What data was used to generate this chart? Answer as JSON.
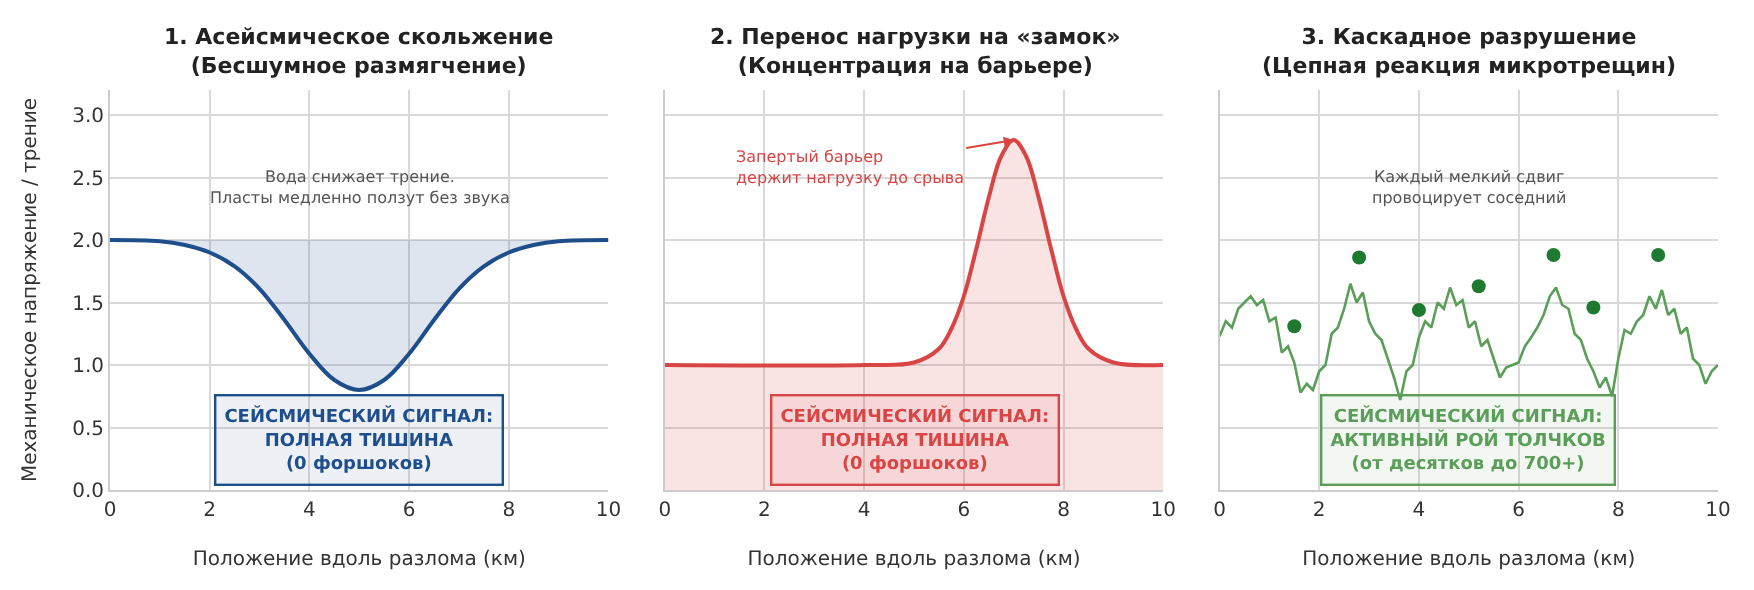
{
  "chart_data": [
    {
      "type": "line",
      "title": "1. Асейсмическое скольжение\n(Бесшумное размягчение)",
      "xlabel": "Положение вдоль разлома (км)",
      "ylabel": "Механическое напряжение / трение",
      "x": [
        0,
        1,
        1.5,
        2,
        2.5,
        3,
        3.5,
        4,
        4.5,
        5,
        5.5,
        6,
        6.5,
        7,
        7.5,
        8,
        8.5,
        9,
        10
      ],
      "series": [
        {
          "color": "#1f4e8c",
          "values": [
            2.0,
            1.99,
            1.96,
            1.9,
            1.79,
            1.61,
            1.36,
            1.09,
            0.88,
            0.8,
            0.88,
            1.09,
            1.36,
            1.61,
            1.79,
            1.9,
            1.96,
            1.99,
            2.0
          ],
          "lower": [
            2.0,
            1.99,
            1.96,
            1.9,
            1.79,
            1.61,
            1.36,
            1.09,
            0.88,
            0.8,
            0.88,
            1.09,
            1.36,
            1.61,
            1.79,
            1.9,
            1.96,
            1.99,
            2.0
          ],
          "upper": [
            2.0,
            2.0,
            2.0,
            2.0,
            2.0,
            2.0,
            2.0,
            2.0,
            2.0,
            2.0,
            2.0,
            2.0,
            2.0,
            2.0,
            2.0,
            2.0,
            2.0,
            2.0,
            2.0
          ]
        }
      ],
      "annotations": [
        "Вода снижает трение.\nПласты медленно ползут без звука",
        "СЕЙСМИЧЕСКИЙ СИГНАЛ:\nПОЛНАЯ ТИШИНА\n(0 форшоков)"
      ],
      "xlim": [
        0,
        10
      ],
      "xticks": [
        0,
        2,
        4,
        6,
        8,
        10
      ],
      "ylim": [
        0,
        3.2
      ],
      "yticks": [
        {
          "value": 0,
          "label": "0.0"
        },
        0.5,
        {
          "value": 1,
          "label": "1.0"
        },
        1.5,
        {
          "value": 2,
          "label": "2.0"
        },
        2.5,
        {
          "value": 3,
          "label": "3.0"
        }
      ],
      "grid": true,
      "marker": "none",
      "line_style": "solid"
    },
    {
      "type": "area",
      "title": "2. Перенос нагрузки на «замок»\n(Концентрация на барьере)",
      "xlabel": "Положение вдоль разлома (км)",
      "x": [
        0,
        4,
        5,
        5.5,
        5.75,
        6,
        6.25,
        6.5,
        6.75,
        7,
        7.25,
        7.5,
        7.75,
        8,
        8.25,
        8.5,
        9,
        10
      ],
      "series": [
        {
          "color": "#d94545",
          "values": [
            1.0,
            1.0,
            1.02,
            1.13,
            1.29,
            1.55,
            1.93,
            2.34,
            2.67,
            2.8,
            2.67,
            2.34,
            1.93,
            1.55,
            1.29,
            1.13,
            1.02,
            1.0
          ]
        }
      ],
      "annotations": [
        {
          "text": "Запертый барьер\nдержит нагрузку до срыва",
          "x": 7,
          "y": 2.8
        },
        "СЕЙСМИЧЕСКИЙ СИГНАЛ:\nПОЛНАЯ ТИШИНА\n(0 форшоков)"
      ],
      "xlim": [
        0,
        10
      ],
      "xticks": [
        0,
        2,
        4,
        6,
        8,
        10
      ],
      "ylim": [
        0,
        3.2
      ],
      "yticks": [
        0,
        0.5,
        1,
        1.5,
        2,
        2.5,
        3
      ],
      "tick_labels": "x",
      "grid": true,
      "marker": "none",
      "line_style": "solid"
    },
    {
      "type": "line",
      "title": "3. Каскадное разрушение\n(Цепная реакция микротрещин)",
      "xlabel": "Положение вдоль разлома (км)",
      "x": [
        0,
        0.125,
        0.25,
        0.375,
        0.5,
        0.625,
        0.75,
        0.875,
        1.0,
        1.125,
        1.25,
        1.375,
        1.5,
        1.625,
        1.75,
        1.875,
        2.0,
        2.125,
        2.25,
        2.375,
        2.5,
        2.625,
        2.75,
        2.875,
        3.0,
        3.125,
        3.25,
        3.375,
        3.5,
        3.625,
        3.75,
        3.875,
        4.0,
        4.125,
        4.25,
        4.375,
        4.5,
        4.625,
        4.75,
        4.875,
        5.0,
        5.125,
        5.25,
        5.375,
        5.5,
        5.625,
        5.75,
        5.875,
        6.0,
        6.125,
        6.25,
        6.375,
        6.5,
        6.625,
        6.75,
        6.875,
        7.0,
        7.125,
        7.25,
        7.375,
        7.5,
        7.625,
        7.75,
        7.875,
        8.0,
        8.125,
        8.25,
        8.375,
        8.5,
        8.625,
        8.75,
        8.875,
        9.0,
        9.125,
        9.25,
        9.375,
        9.5,
        9.625,
        9.75,
        9.875,
        10.0
      ],
      "series": [
        {
          "color": "#5a9e5a",
          "values": [
            1.23,
            1.35,
            1.3,
            1.45,
            1.5,
            1.55,
            1.48,
            1.52,
            1.35,
            1.38,
            1.1,
            1.15,
            1.02,
            0.78,
            0.85,
            0.8,
            0.95,
            1.0,
            1.25,
            1.3,
            1.45,
            1.65,
            1.5,
            1.58,
            1.35,
            1.25,
            1.2,
            1.05,
            0.9,
            0.72,
            0.95,
            1.0,
            1.22,
            1.35,
            1.3,
            1.5,
            1.45,
            1.62,
            1.48,
            1.52,
            1.3,
            1.35,
            1.15,
            1.2,
            1.05,
            0.9,
            0.98,
            1.0,
            1.02,
            1.15,
            1.22,
            1.3,
            1.4,
            1.55,
            1.62,
            1.48,
            1.45,
            1.25,
            1.2,
            1.05,
            0.95,
            0.82,
            0.9,
            0.75,
            1.05,
            1.28,
            1.25,
            1.35,
            1.4,
            1.55,
            1.45,
            1.6,
            1.4,
            1.45,
            1.25,
            1.3,
            1.05,
            1.0,
            0.85,
            0.95,
            1.0
          ]
        },
        {
          "type": "scatter",
          "marker": "circle",
          "color": "#1e7a2e",
          "x": [
            1.5,
            2.8,
            4.0,
            5.2,
            6.7,
            7.5,
            8.8
          ],
          "values": [
            1.31,
            1.86,
            1.44,
            1.63,
            1.88,
            1.46,
            1.88
          ]
        }
      ],
      "annotations": [
        "Каждый мелкий сдвиг\nпровоцирует соседний",
        "СЕЙСМИЧЕСКИЙ СИГНАЛ:\nАКТИВНЫЙ РОЙ ТОЛЧКОВ\n(от десятков до 700+)"
      ],
      "xlim": [
        0,
        10
      ],
      "xticks": [
        0,
        2,
        4,
        6,
        8,
        10
      ],
      "ylim": [
        0,
        3.2
      ],
      "yticks": [
        0,
        0.5,
        1,
        1.5,
        2,
        2.5,
        3
      ],
      "tick_labels": "x",
      "grid": true,
      "marker": "none",
      "line_style": "solid"
    }
  ]
}
